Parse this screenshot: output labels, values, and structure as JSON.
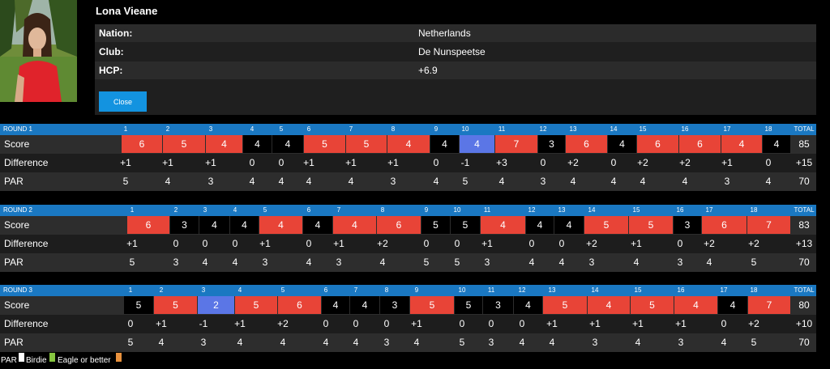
{
  "player": {
    "name": "Lona Vieane",
    "info": [
      {
        "label": "Nation:",
        "value": "Netherlands"
      },
      {
        "label": "Club:",
        "value": "De Nunspeetse"
      },
      {
        "label": "HCP:",
        "value": "+6.9"
      }
    ],
    "close_label": "Close"
  },
  "colors": {
    "header_blue": "#1a78c2",
    "birdie": "#5b76e6",
    "eagle": "#86c540",
    "bogey": "#e84437",
    "par": "#000000",
    "close_button": "#1393e0",
    "legend_orange": "#e8913d"
  },
  "labels": {
    "score": "Score",
    "difference": "Difference",
    "par": "PAR",
    "total": "TOTAL"
  },
  "rounds": [
    {
      "title": "ROUND 1",
      "holes": [
        "1",
        "2",
        "3",
        "4",
        "5",
        "6",
        "7",
        "8",
        "9",
        "10",
        "11",
        "12",
        "13",
        "14",
        "15",
        "16",
        "17",
        "18"
      ],
      "scores": [
        "6",
        "5",
        "4",
        "4",
        "4",
        "5",
        "5",
        "4",
        "4",
        "4",
        "7",
        "3",
        "6",
        "4",
        "6",
        "6",
        "4",
        "4"
      ],
      "diff": [
        "+1",
        "+1",
        "+1",
        "0",
        "0",
        "+1",
        "+1",
        "+1",
        "0",
        "-1",
        "+3",
        "0",
        "+2",
        "0",
        "+2",
        "+2",
        "+1",
        "0"
      ],
      "par": [
        "5",
        "4",
        "3",
        "4",
        "4",
        "4",
        "4",
        "3",
        "4",
        "5",
        "4",
        "3",
        "4",
        "4",
        "4",
        "4",
        "3",
        "4"
      ],
      "total_score": "85",
      "total_diff": "+15",
      "total_par": "70"
    },
    {
      "title": "ROUND 2",
      "holes": [
        "1",
        "2",
        "3",
        "4",
        "5",
        "6",
        "7",
        "8",
        "9",
        "10",
        "11",
        "12",
        "13",
        "14",
        "15",
        "16",
        "17",
        "18"
      ],
      "scores": [
        "6",
        "3",
        "4",
        "4",
        "4",
        "4",
        "4",
        "6",
        "5",
        "5",
        "4",
        "4",
        "4",
        "5",
        "5",
        "3",
        "6",
        "7"
      ],
      "diff": [
        "+1",
        "0",
        "0",
        "0",
        "+1",
        "0",
        "+1",
        "+2",
        "0",
        "0",
        "+1",
        "0",
        "0",
        "+2",
        "+1",
        "0",
        "+2",
        "+2"
      ],
      "par": [
        "5",
        "3",
        "4",
        "4",
        "3",
        "4",
        "3",
        "4",
        "5",
        "5",
        "3",
        "4",
        "4",
        "3",
        "4",
        "3",
        "4",
        "5"
      ],
      "total_score": "83",
      "total_diff": "+13",
      "total_par": "70"
    },
    {
      "title": "ROUND 3",
      "holes": [
        "1",
        "2",
        "3",
        "4",
        "5",
        "6",
        "7",
        "8",
        "9",
        "10",
        "11",
        "12",
        "13",
        "14",
        "15",
        "16",
        "17",
        "18"
      ],
      "scores": [
        "5",
        "5",
        "2",
        "5",
        "6",
        "4",
        "4",
        "3",
        "5",
        "5",
        "3",
        "4",
        "5",
        "4",
        "5",
        "4",
        "4",
        "7"
      ],
      "diff": [
        "0",
        "+1",
        "-1",
        "+1",
        "+2",
        "0",
        "0",
        "0",
        "+1",
        "0",
        "0",
        "0",
        "+1",
        "+1",
        "+1",
        "+1",
        "0",
        "+2"
      ],
      "par": [
        "5",
        "4",
        "3",
        "4",
        "4",
        "4",
        "4",
        "3",
        "4",
        "5",
        "3",
        "4",
        "4",
        "3",
        "4",
        "3",
        "4",
        "5"
      ],
      "total_score": "80",
      "total_diff": "+10",
      "total_par": "70"
    }
  ],
  "legend": [
    {
      "label": "PAR",
      "color": "#ffffff"
    },
    {
      "label": "Birdie",
      "color": "#ffffff"
    },
    {
      "label": "Eagle or better",
      "color": "#86c540"
    },
    {
      "label": "",
      "color": "#e8913d"
    }
  ]
}
